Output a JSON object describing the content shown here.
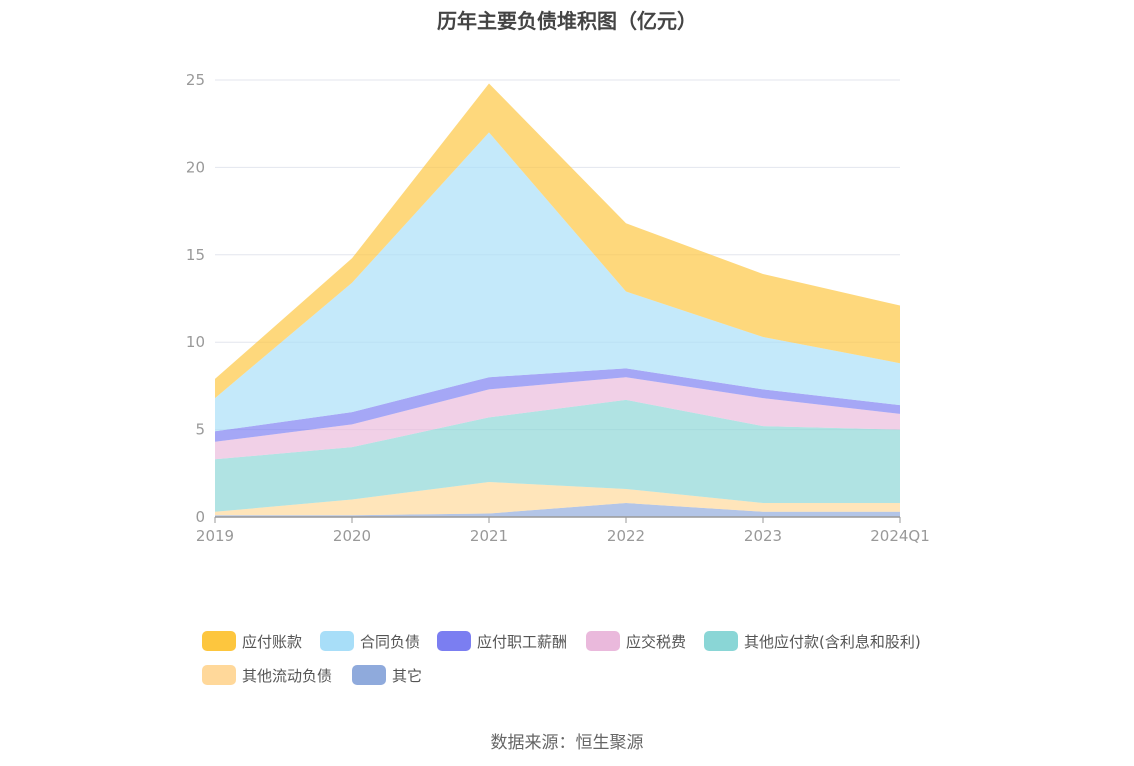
{
  "chart_data": {
    "type": "area",
    "stacked": true,
    "title": "历年主要负债堆积图（亿元）",
    "categories": [
      "2019",
      "2020",
      "2021",
      "2022",
      "2023",
      "2024Q1"
    ],
    "ylim": [
      0,
      25
    ],
    "yticks": [
      0,
      5,
      10,
      15,
      20,
      25
    ],
    "grid": true,
    "legend_position": "bottom",
    "series": [
      {
        "name": "其它",
        "color": "#8faadc",
        "values": [
          0.1,
          0.1,
          0.2,
          0.8,
          0.3,
          0.3
        ]
      },
      {
        "name": "其他流动负债",
        "color": "#ffd89a",
        "values": [
          0.2,
          0.9,
          1.8,
          0.8,
          0.5,
          0.5
        ]
      },
      {
        "name": "其他应付款(含利息和股利)",
        "color": "#8ad6d6",
        "values": [
          3.0,
          3.0,
          3.7,
          5.1,
          4.4,
          4.2
        ]
      },
      {
        "name": "应交税费",
        "color": "#eab9dc",
        "values": [
          1.0,
          1.3,
          1.6,
          1.3,
          1.6,
          0.9
        ]
      },
      {
        "name": "应付职工薪酬",
        "color": "#7b7ef1",
        "values": [
          0.6,
          0.7,
          0.7,
          0.5,
          0.5,
          0.5
        ]
      },
      {
        "name": "合同负债",
        "color": "#a8def8",
        "values": [
          1.9,
          7.4,
          14.0,
          4.4,
          3.0,
          2.4
        ]
      },
      {
        "name": "应付账款",
        "color": "#fdc63e",
        "values": [
          1.1,
          1.4,
          2.8,
          3.9,
          3.6,
          3.3
        ]
      }
    ]
  },
  "legend": {
    "items": [
      {
        "label": "应付账款",
        "color": "#fdc63e"
      },
      {
        "label": "合同负债",
        "color": "#a8def8"
      },
      {
        "label": "应付职工薪酬",
        "color": "#7b7ef1"
      },
      {
        "label": "应交税费",
        "color": "#eab9dc"
      },
      {
        "label": "其他应付款(含利息和股利)",
        "color": "#8ad6d6"
      },
      {
        "label": "其他流动负债",
        "color": "#ffd89a"
      },
      {
        "label": "其它",
        "color": "#8faadc"
      }
    ]
  },
  "source": "数据来源：恒生聚源"
}
